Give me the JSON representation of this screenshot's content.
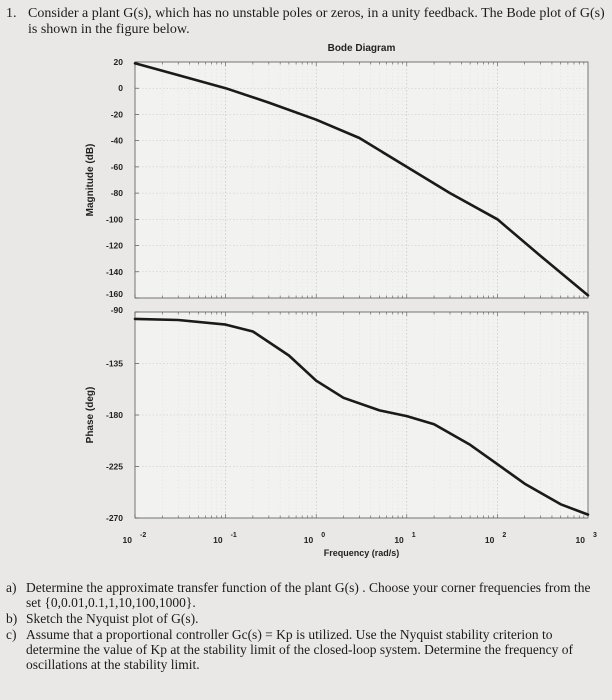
{
  "header": {
    "number": "1.",
    "line1": "Consider a plant G(s), which has no unstable poles or zeros, in a unity feedback. The Bode plot of G(s)",
    "line2": "is shown in the figure below."
  },
  "chart_data": [
    {
      "type": "line",
      "title": "Bode Diagram",
      "ylabel": "Magnitude (dB)",
      "xlabel": "",
      "xscale": "log",
      "xlim": [
        0.01,
        1000
      ],
      "ylim": [
        -160,
        20
      ],
      "yticks": [
        "20",
        "0",
        "-20",
        "-40",
        "-60",
        "-80",
        "-100",
        "-120",
        "-140",
        "-160"
      ],
      "grid": true,
      "series": [
        {
          "x": [
            0.01,
            0.03,
            0.1,
            0.3,
            1,
            3,
            10,
            30,
            100,
            300,
            1000
          ],
          "y": [
            19,
            10,
            0,
            -11,
            -24,
            -38,
            -60,
            -80,
            -100,
            -128,
            -158
          ]
        }
      ]
    },
    {
      "type": "line",
      "title": "",
      "ylabel": "Phase (deg)",
      "xlabel": "Frequency  (rad/s)",
      "xscale": "log",
      "xlim": [
        0.01,
        1000
      ],
      "ylim": [
        -270,
        -90
      ],
      "yticks": [
        "-90",
        "-135",
        "-180",
        "-225",
        "-270"
      ],
      "xticks": [
        "10 -2",
        "10 -1",
        "10 0",
        "10 1",
        "10 2",
        "10 3"
      ],
      "grid": true,
      "series": [
        {
          "x": [
            0.01,
            0.03,
            0.1,
            0.2,
            0.5,
            1,
            2,
            5,
            10,
            20,
            50,
            100,
            200,
            500,
            1000
          ],
          "y": [
            -96,
            -97,
            -101,
            -107,
            -128,
            -150,
            -165,
            -176,
            -181,
            -188,
            -206,
            -223,
            -240,
            -258,
            -267
          ]
        }
      ]
    }
  ],
  "questions": [
    {
      "label": "a)",
      "text": "Determine the approximate transfer function of the plant G(s) . Choose your corner frequencies from the set {0,0.01,0.1,1,10,100,1000}."
    },
    {
      "label": "b)",
      "text": "Sketch the Nyquist plot of G(s)."
    },
    {
      "label": "c)",
      "text": "Assume that a proportional controller Gc(s) = Kp is utilized. Use the Nyquist stability criterion to determine the value of Kp at the stability limit of the closed-loop system. Determine the frequency of oscillations at the stability limit."
    }
  ]
}
